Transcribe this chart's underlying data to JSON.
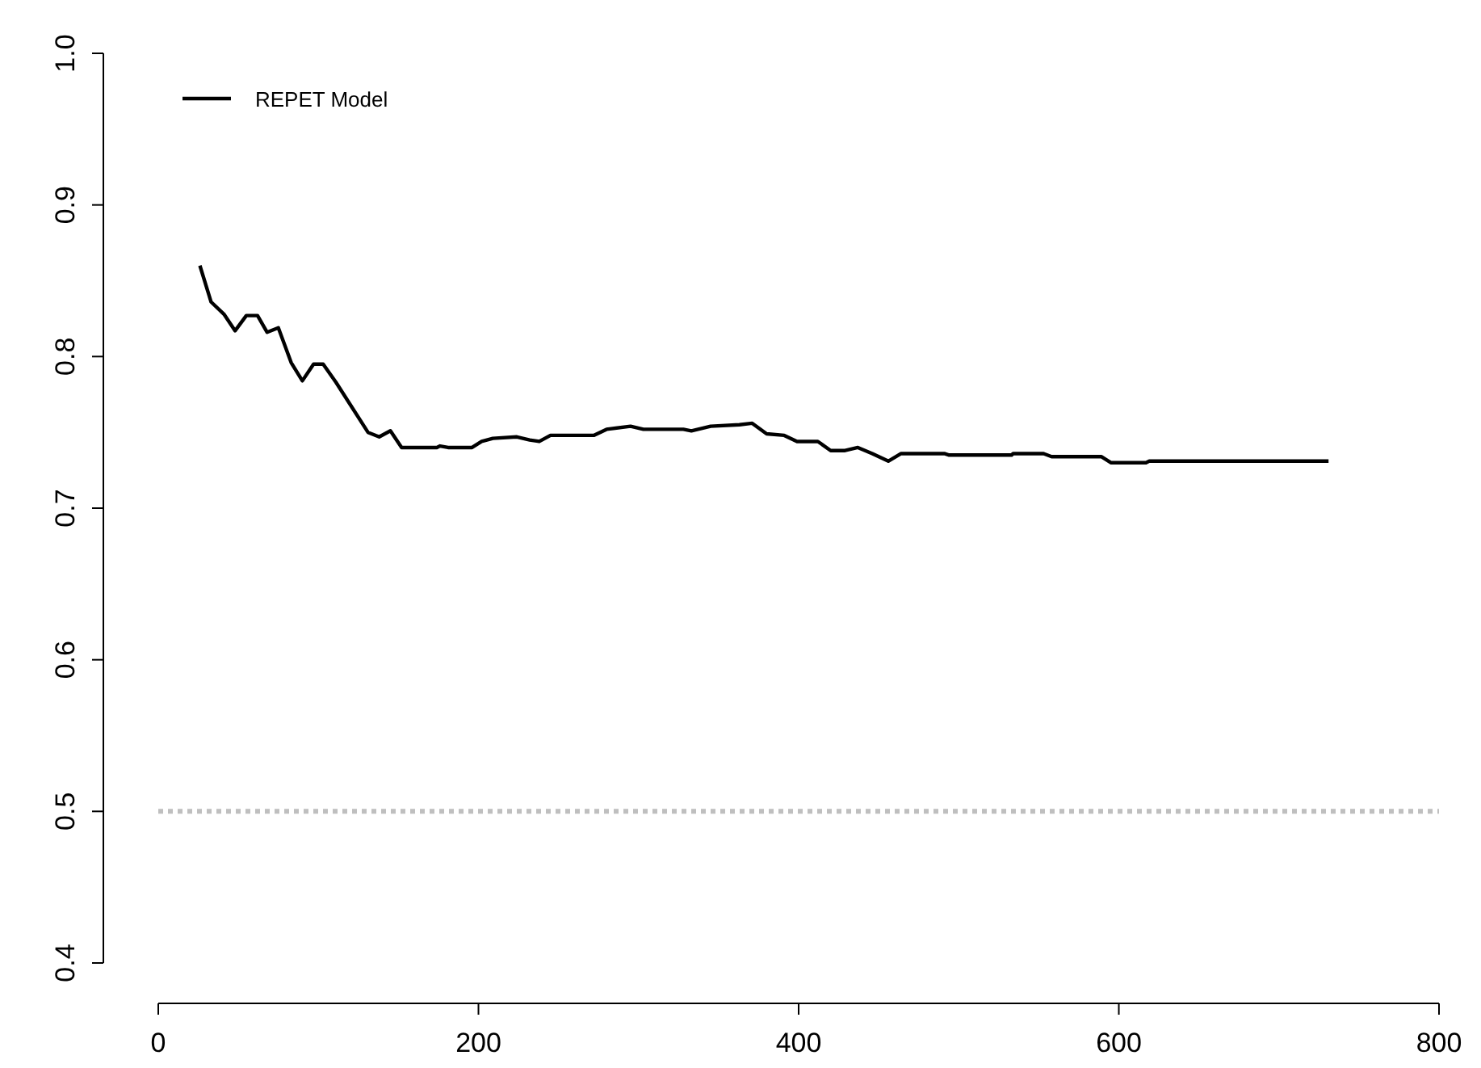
{
  "chart_data": {
    "type": "line",
    "series": [
      {
        "name": "REPET Model",
        "color": "#000000",
        "x": [
          26,
          33,
          41,
          48,
          55,
          62,
          68,
          75,
          83,
          90,
          97,
          103,
          111,
          131,
          138,
          145,
          152,
          174,
          176,
          181,
          196,
          202,
          209,
          224,
          232,
          238,
          245,
          272,
          280,
          295,
          303,
          328,
          333,
          345,
          363,
          371,
          380,
          391,
          399,
          412,
          420,
          429,
          437,
          446,
          456,
          464,
          491,
          494,
          533,
          534,
          553,
          558,
          589,
          595,
          617,
          619,
          731
        ],
        "values": [
          0.86,
          0.836,
          0.828,
          0.817,
          0.827,
          0.827,
          0.816,
          0.819,
          0.796,
          0.784,
          0.795,
          0.795,
          0.783,
          0.75,
          0.747,
          0.751,
          0.74,
          0.74,
          0.741,
          0.74,
          0.74,
          0.744,
          0.746,
          0.747,
          0.745,
          0.744,
          0.748,
          0.748,
          0.752,
          0.754,
          0.752,
          0.752,
          0.751,
          0.754,
          0.755,
          0.756,
          0.749,
          0.748,
          0.744,
          0.744,
          0.738,
          0.738,
          0.74,
          0.736,
          0.731,
          0.736,
          0.736,
          0.735,
          0.735,
          0.736,
          0.736,
          0.734,
          0.734,
          0.73,
          0.73,
          0.731,
          0.731
        ]
      }
    ],
    "xlim": [
      0,
      800
    ],
    "xticks": [
      0,
      200,
      400,
      600,
      800
    ],
    "ylim": [
      0.4,
      1.0
    ],
    "yticks": [
      {
        "value": 0.4,
        "label": "0.4"
      },
      {
        "value": 0.5,
        "label": "0.5"
      },
      {
        "value": 0.6,
        "label": "0.6"
      },
      {
        "value": 0.7,
        "label": "0.7"
      },
      {
        "value": 0.8,
        "label": "0.8"
      },
      {
        "value": 0.9,
        "label": "0.9"
      },
      {
        "value": 1.0,
        "label": "1.0"
      }
    ],
    "ref_lines": [
      {
        "axis": "y",
        "value": 0.5,
        "color": "#bfbfbf",
        "line_style": "dotted"
      }
    ],
    "legend": "top left",
    "grid": false,
    "line_style": "solid"
  }
}
